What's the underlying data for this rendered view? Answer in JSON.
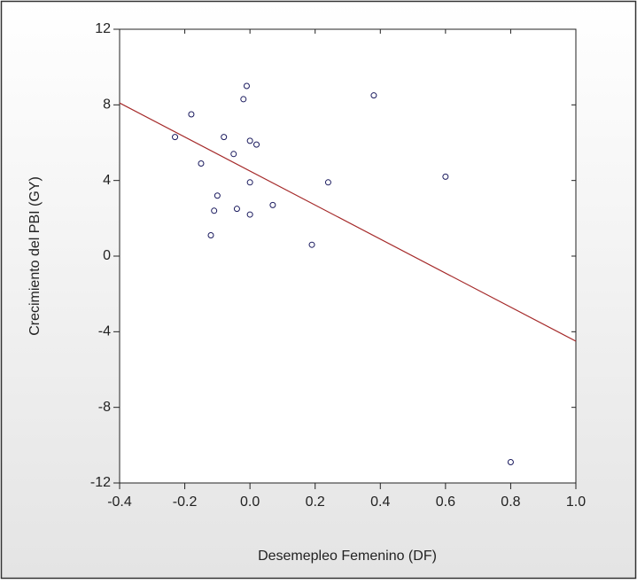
{
  "chart_data": {
    "type": "scatter",
    "xlabel": "Desemepleo Femenino (DF)",
    "ylabel": "Crecimiento del PBI (GY)",
    "xlim": [
      -0.4,
      1.0
    ],
    "ylim": [
      -12,
      12
    ],
    "xticks": [
      -0.4,
      -0.2,
      {
        "value": 0,
        "label": "0.0"
      },
      0.2,
      0.4,
      0.6,
      0.8,
      {
        "value": 1.0,
        "label": "1.0"
      }
    ],
    "yticks": [
      -12,
      -8,
      -4,
      0,
      4,
      8,
      12
    ],
    "series": [
      {
        "type": "scatter",
        "color": "#1a1a5e",
        "x": [
          -0.23,
          -0.18,
          -0.15,
          -0.1,
          -0.11,
          -0.12,
          -0.08,
          -0.05,
          -0.04,
          -0.02,
          -0.01,
          0.0,
          0.02,
          0.0,
          0.0,
          0.07,
          0.19,
          0.24,
          0.38,
          0.6,
          0.8
        ],
        "values": [
          6.3,
          7.5,
          4.9,
          3.2,
          2.4,
          1.1,
          6.3,
          5.4,
          2.5,
          8.3,
          9.0,
          6.1,
          5.9,
          3.9,
          2.2,
          2.7,
          0.6,
          3.9,
          8.5,
          4.2,
          -10.9
        ]
      },
      {
        "type": "line",
        "color": "#a52a2a",
        "x": [
          -0.4,
          1.0
        ],
        "values": [
          8.1,
          -4.5
        ]
      }
    ]
  }
}
